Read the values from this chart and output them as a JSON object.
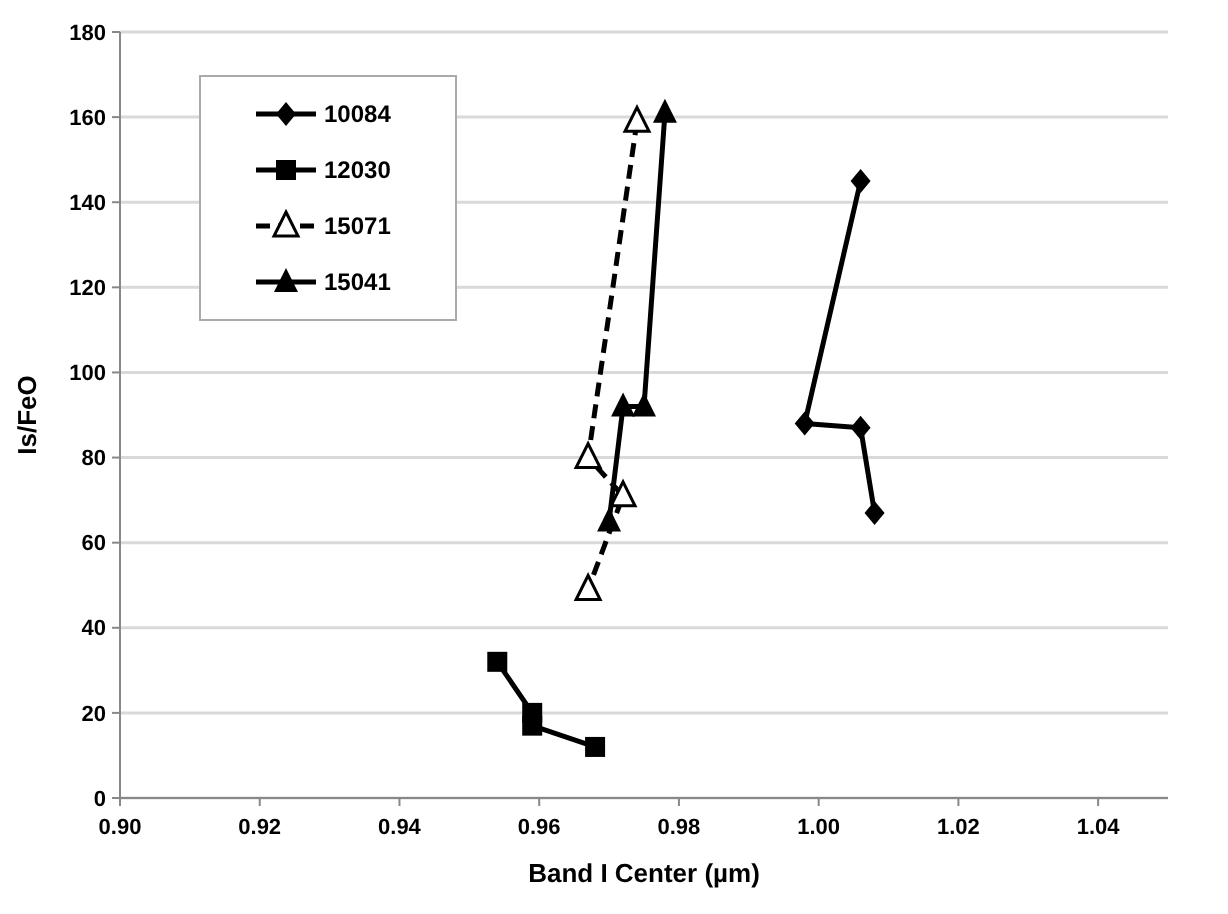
{
  "chart_data": {
    "type": "line",
    "xlabel": "Band I Center (µm)",
    "ylabel": "Is/FeO",
    "xlim": [
      0.9,
      1.05
    ],
    "xticks": [
      {
        "value": 0.9,
        "label": "0.90"
      },
      {
        "value": 0.92,
        "label": "0.92"
      },
      {
        "value": 0.94,
        "label": "0.94"
      },
      {
        "value": 0.96,
        "label": "0.96"
      },
      {
        "value": 0.98,
        "label": "0.98"
      },
      {
        "value": 1.0,
        "label": "1.00"
      },
      {
        "value": 1.02,
        "label": "1.02"
      },
      {
        "value": 1.04,
        "label": "1.04"
      }
    ],
    "ylim": [
      0,
      180
    ],
    "yticks": [
      0,
      20,
      40,
      60,
      80,
      100,
      120,
      140,
      160,
      180
    ],
    "grid": "y",
    "legend": "top left",
    "series": [
      {
        "name": "10084",
        "color": "#000000",
        "marker": "diamond",
        "line_style": "solid",
        "x": [
          1.006,
          0.998,
          1.006,
          1.008
        ],
        "values": [
          145,
          88,
          87,
          67
        ]
      },
      {
        "name": "12030",
        "color": "#000000",
        "marker": "square",
        "line_style": "solid",
        "x": [
          0.954,
          0.959,
          0.959,
          0.968
        ],
        "values": [
          32,
          20,
          17,
          12
        ]
      },
      {
        "name": "15071",
        "color": "#000000",
        "marker": "triangle-open",
        "line_style": "dashed",
        "x": [
          0.974,
          0.967,
          0.972,
          0.967
        ],
        "values": [
          159,
          80,
          71,
          49
        ]
      },
      {
        "name": "15041",
        "color": "#000000",
        "marker": "triangle",
        "line_style": "solid",
        "x": [
          0.97,
          0.972,
          0.975,
          0.978
        ],
        "values": [
          65,
          92,
          92,
          161
        ]
      }
    ]
  }
}
